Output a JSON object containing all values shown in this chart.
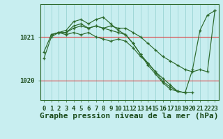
{
  "background_color": "#c8eef0",
  "plot_bg_color": "#c8eef0",
  "grid_color": "#a0d8d8",
  "line_color": "#2d6a2d",
  "marker_color": "#2d6a2d",
  "red_hline_color": "#dd4444",
  "title": "Graphe pression niveau de la mer (hPa)",
  "xlim": [
    -0.5,
    23.5
  ],
  "ylim": [
    1019.55,
    1021.75
  ],
  "yticks": [
    1020,
    1021
  ],
  "xticks": [
    0,
    1,
    2,
    3,
    4,
    5,
    6,
    7,
    8,
    9,
    10,
    11,
    12,
    13,
    14,
    15,
    16,
    17,
    18,
    19,
    20,
    21,
    22,
    23
  ],
  "series": [
    {
      "x": [
        0,
        1,
        2,
        3,
        4,
        5,
        6,
        7,
        8,
        9,
        10,
        11,
        12,
        13,
        14,
        15,
        16,
        17,
        18,
        19,
        20,
        21,
        22,
        23
      ],
      "y": [
        1020.65,
        1021.05,
        1021.1,
        1021.15,
        1021.35,
        1021.4,
        1021.3,
        1021.4,
        1021.45,
        1021.3,
        1021.15,
        1021.05,
        1020.85,
        1020.6,
        1020.35,
        1020.15,
        1019.95,
        1019.8,
        1019.75,
        1019.72,
        1020.25,
        1021.15,
        1021.5,
        1021.6
      ]
    },
    {
      "x": [
        1,
        2,
        3,
        4,
        5,
        6,
        7,
        8,
        9,
        10,
        11,
        12,
        13,
        14,
        15,
        16,
        17,
        18,
        19,
        20
      ],
      "y": [
        1021.05,
        1021.1,
        1021.1,
        1021.25,
        1021.3,
        1021.2,
        1021.25,
        1021.2,
        1021.15,
        1021.1,
        1021.05,
        1020.85,
        1020.6,
        1020.4,
        1020.2,
        1019.98,
        1019.85,
        1019.75,
        1019.72,
        1019.72
      ]
    },
    {
      "x": [
        1,
        2,
        3,
        4,
        5,
        6,
        7,
        8,
        9,
        10,
        11,
        12,
        13,
        14,
        15,
        16,
        17,
        18,
        19,
        20,
        21,
        22,
        23
      ],
      "y": [
        1021.05,
        1021.1,
        1021.1,
        1021.2,
        1021.25,
        1021.2,
        1021.25,
        1021.2,
        1021.25,
        1021.2,
        1021.2,
        1021.1,
        1021.0,
        1020.85,
        1020.7,
        1020.55,
        1020.45,
        1020.35,
        1020.25,
        1020.2,
        1020.25,
        1020.2,
        1021.6
      ]
    },
    {
      "x": [
        0,
        1,
        2,
        3,
        4,
        5,
        6,
        7,
        8,
        9,
        10,
        11,
        12,
        13,
        14,
        15,
        16,
        17,
        18,
        19
      ],
      "y": [
        1020.5,
        1021.0,
        1021.1,
        1021.05,
        1021.1,
        1021.05,
        1021.1,
        1021.0,
        1020.95,
        1020.9,
        1020.95,
        1020.9,
        1020.75,
        1020.55,
        1020.4,
        1020.2,
        1020.05,
        1019.9,
        1019.75,
        1019.72
      ]
    }
  ],
  "title_fontsize": 8,
  "tick_fontsize": 6.5,
  "figsize": [
    3.2,
    2.0
  ],
  "dpi": 100
}
